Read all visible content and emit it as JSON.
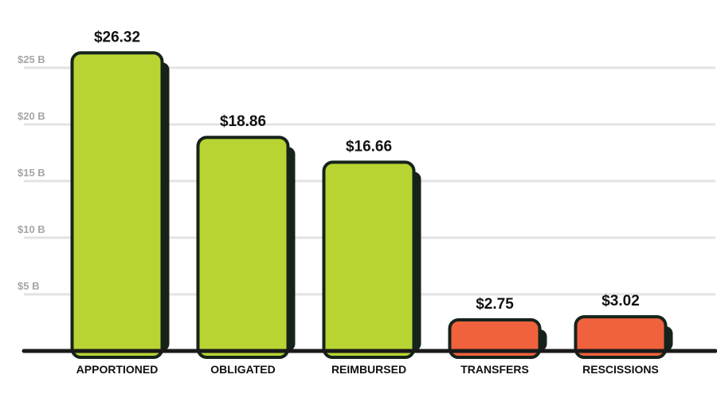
{
  "chart_data": {
    "type": "bar",
    "categories": [
      "APPORTIONED",
      "OBLIGATED",
      "REIMBURSED",
      "TRANSFERS",
      "RESCISSIONS"
    ],
    "values": [
      26.32,
      18.86,
      16.66,
      2.75,
      3.02
    ],
    "data_labels": [
      "$26.32",
      "$18.86",
      "$16.66",
      "$2.75",
      "$3.02"
    ],
    "bar_colors": [
      "#b8d432",
      "#b8d432",
      "#b8d432",
      "#f0623d",
      "#f0623d"
    ],
    "y_ticks": [
      5,
      10,
      15,
      20,
      25
    ],
    "y_tick_labels": [
      "$5 B",
      "$10 B",
      "$15 B",
      "$20 B",
      "$25 B"
    ],
    "ylim": [
      0,
      28
    ],
    "grid": true,
    "title": "",
    "xlabel": "",
    "ylabel": ""
  },
  "colors": {
    "grid": "#e3e3e3",
    "axis": "#1a1a1a",
    "outline": "#16231b",
    "shadow": "#16231b"
  }
}
